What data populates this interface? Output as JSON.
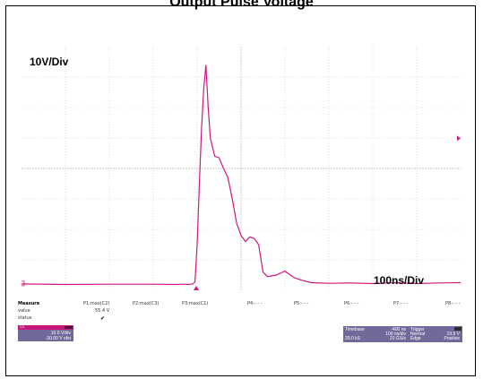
{
  "title": "Output Pulse Voltage",
  "labels": {
    "vertical_scale": "10V/Div",
    "time_scale": "100ns/Div"
  },
  "colors": {
    "trace": "#d0187c",
    "grid": "#c9c9c9",
    "channel": "#c8187a",
    "panel": "#6f6a9a"
  },
  "measure": {
    "header": "Measure",
    "row_labels": {
      "value": "value",
      "status": "status"
    },
    "params": [
      "P1:max(C2)",
      "P2:max(C3)",
      "P3:max(C1)",
      "P4:- - -",
      "P5:- - -",
      "P6:- - -",
      "P7:- - -",
      "P8:- - -"
    ],
    "p1_value": "55.4 V",
    "p1_status": "✔"
  },
  "channel": {
    "label": "C1",
    "vdiv": "10.0 V/div",
    "offset": "-30.00 V ofst"
  },
  "timebase": {
    "label": "Timebase",
    "delay": "-400 ns",
    "tdiv": "100 ns/div",
    "samples": "20.0 kS",
    "rate": "20 GS/s"
  },
  "trigger": {
    "label": "Trigger",
    "mode": "Normal",
    "level": "19.9 V",
    "type": "Edge",
    "slope": "Positive"
  },
  "chart_data": {
    "type": "line",
    "title": "Output Pulse Voltage",
    "xlabel": "",
    "ylabel": "",
    "x_unit": "ns",
    "y_unit": "V",
    "grid": true,
    "xlim": [
      -400,
      600
    ],
    "ylim": [
      -30,
      50
    ],
    "series": [
      {
        "x": [
          -400,
          -300,
          -200,
          -100,
          -50,
          -30,
          -20,
          -15,
          -10,
          -5,
          0,
          5,
          10,
          15,
          20,
          25,
          30,
          40,
          50,
          60,
          70,
          80,
          90,
          100,
          110,
          120,
          130,
          140,
          150,
          160,
          180,
          200,
          220,
          240,
          260,
          300,
          350,
          400,
          450,
          500,
          550,
          600
        ],
        "y": [
          -27.9,
          -28.1,
          -28.0,
          -28.0,
          -28.1,
          -28.0,
          -28.1,
          -28.0,
          -27.9,
          -27.2,
          -15,
          5,
          23,
          36,
          44,
          30,
          20,
          14,
          13.5,
          10,
          7,
          0,
          -8,
          -12,
          -14,
          -12.5,
          -13,
          -15,
          -24,
          -25.5,
          -25,
          -23.7,
          -25.8,
          -26.8,
          -27.5,
          -27.7,
          -27.6,
          -27.8,
          -27.5,
          -27.8,
          -27.6,
          -27.5
        ]
      }
    ]
  }
}
